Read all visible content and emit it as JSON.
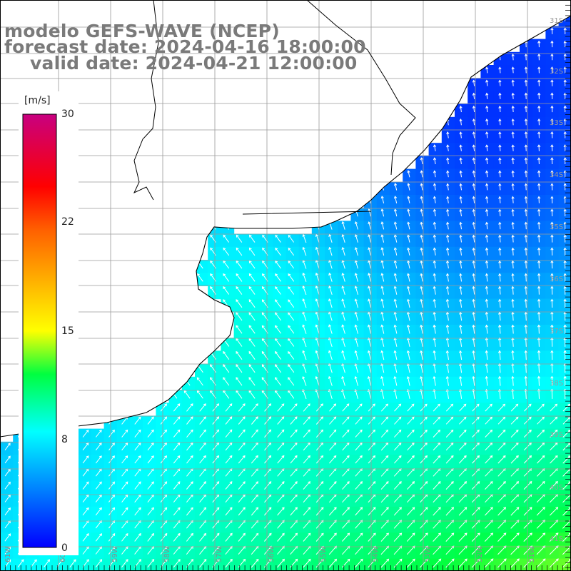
{
  "title": {
    "line1": "modelo GEFS-WAVE (NCEP)",
    "line2": "forecast date: 2024-04-16 18:00:00",
    "line3": "valid date: 2024-04-21 12:00:00"
  },
  "colorbar": {
    "unit": "[m/s]",
    "ticks": [
      "30",
      "22",
      "15",
      "8",
      "0"
    ],
    "tick_values": [
      30,
      22,
      15,
      8,
      0
    ],
    "range": [
      0,
      30
    ],
    "stops": [
      {
        "value": 0,
        "color": "#0000ff"
      },
      {
        "value": 4,
        "color": "#0080ff"
      },
      {
        "value": 8,
        "color": "#00ffff"
      },
      {
        "value": 12,
        "color": "#00ff40"
      },
      {
        "value": 15,
        "color": "#ffff00"
      },
      {
        "value": 22,
        "color": "#ff6000"
      },
      {
        "value": 25,
        "color": "#ff0000"
      },
      {
        "value": 30,
        "color": "#c80080"
      }
    ]
  },
  "map": {
    "region": "Río de la Plata / Uruguay coast",
    "latitude_labels": [
      "31S",
      "32S",
      "33S",
      "34S",
      "35S",
      "36S",
      "37S",
      "38S",
      "39S",
      "40S",
      "41S"
    ],
    "longitude_labels": [
      "61W",
      "60W",
      "59W",
      "58W",
      "57W",
      "56W",
      "55W",
      "54W",
      "53W",
      "52W",
      "51W"
    ],
    "land_color": "#ffffff",
    "coastline_color": "#000000",
    "grid_color": "#9a9a9a",
    "arrow_color": "#ffffff"
  }
}
